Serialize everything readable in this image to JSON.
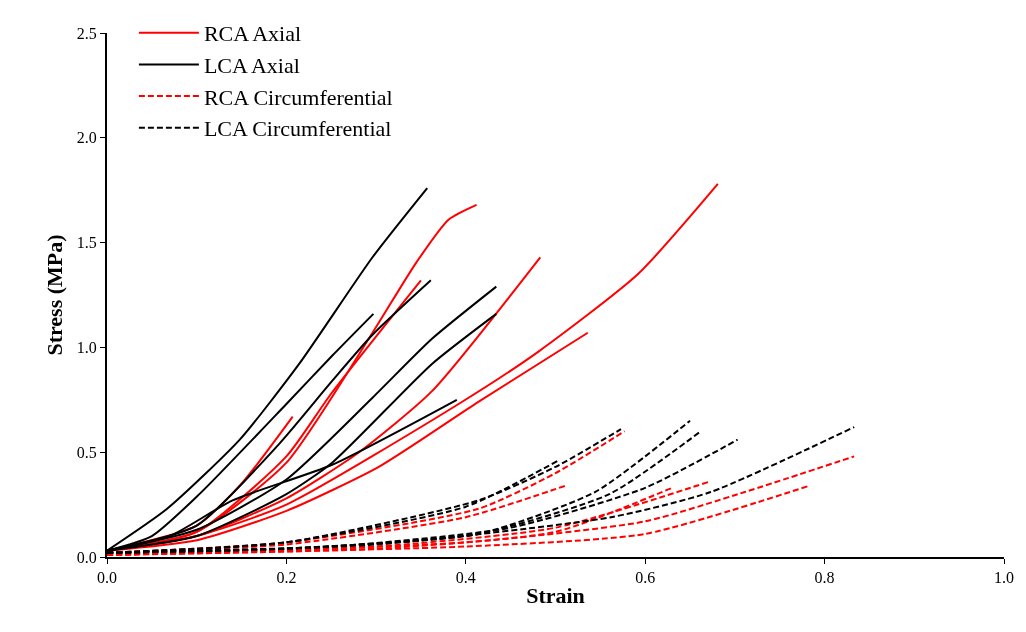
{
  "chart_data": {
    "type": "line",
    "xlabel": "Strain",
    "ylabel": "Stress (MPa)",
    "legend": "top left",
    "xlim": [
      0,
      1
    ],
    "ylim": [
      0,
      2.5
    ],
    "xticks": [
      {
        "value": 0,
        "label": "0.0"
      },
      {
        "value": 0.2,
        "label": "0.2"
      },
      {
        "value": 0.4,
        "label": "0.4"
      },
      {
        "value": 0.6,
        "label": "0.6"
      },
      {
        "value": 0.8,
        "label": "0.8"
      },
      {
        "value": 1,
        "label": "1.0"
      }
    ],
    "yticks": [
      {
        "value": 0,
        "label": "0.0"
      },
      {
        "value": 0.5,
        "label": "0.5"
      },
      {
        "value": 1,
        "label": "1.0"
      },
      {
        "value": 1.5,
        "label": "1.5"
      },
      {
        "value": 2,
        "label": "2.0"
      },
      {
        "value": 2.5,
        "label": "2.5"
      }
    ],
    "series": [
      {
        "name": "RCA Axial",
        "color": "#ff0000",
        "line_style": "solid",
        "x": [
          0,
          0.1,
          0.2,
          0.296,
          0.344,
          0.381,
          0.412
        ],
        "values": [
          0.03,
          0.12,
          0.45,
          1.07,
          1.4,
          1.61,
          1.68
        ]
      },
      {
        "color": "#ff0000",
        "line_style": "solid",
        "x": [
          0,
          0.1,
          0.2,
          0.25,
          0.35
        ],
        "values": [
          0.03,
          0.12,
          0.48,
          0.78,
          1.32
        ]
      },
      {
        "color": "#ff0000",
        "line_style": "solid",
        "x": [
          0,
          0.1,
          0.15,
          0.207
        ],
        "values": [
          0.03,
          0.15,
          0.35,
          0.67
        ]
      },
      {
        "color": "#ff0000",
        "line_style": "solid",
        "x": [
          0,
          0.1,
          0.2,
          0.281,
          0.362,
          0.483
        ],
        "values": [
          0.03,
          0.1,
          0.28,
          0.5,
          0.79,
          1.43
        ]
      },
      {
        "color": "#ff0000",
        "line_style": "solid",
        "x": [
          0,
          0.1,
          0.2,
          0.392,
          0.481,
          0.592,
          0.681
        ],
        "values": [
          0.03,
          0.1,
          0.25,
          0.73,
          0.98,
          1.35,
          1.78
        ]
      },
      {
        "color": "#ff0000",
        "line_style": "solid",
        "x": [
          0,
          0.1,
          0.2,
          0.303,
          0.414,
          0.536
        ],
        "values": [
          0.03,
          0.08,
          0.22,
          0.43,
          0.74,
          1.07
        ]
      },
      {
        "name": "LCA Axial",
        "color": "#000000",
        "line_style": "solid",
        "x": [
          0,
          0.067,
          0.148,
          0.214,
          0.296,
          0.357
        ],
        "values": [
          0.03,
          0.23,
          0.56,
          0.92,
          1.43,
          1.76
        ]
      },
      {
        "color": "#000000",
        "line_style": "solid",
        "x": [
          0,
          0.05,
          0.103,
          0.2,
          0.251,
          0.297
        ],
        "values": [
          0.03,
          0.1,
          0.3,
          0.73,
          0.96,
          1.16
        ]
      },
      {
        "color": "#000000",
        "line_style": "solid",
        "x": [
          0,
          0.1,
          0.192,
          0.251,
          0.296,
          0.361
        ],
        "values": [
          0.03,
          0.15,
          0.54,
          0.84,
          1.06,
          1.32
        ]
      },
      {
        "color": "#000000",
        "line_style": "solid",
        "x": [
          0,
          0.1,
          0.2,
          0.296,
          0.362,
          0.434
        ],
        "values": [
          0.03,
          0.13,
          0.37,
          0.76,
          1.04,
          1.29
        ]
      },
      {
        "color": "#000000",
        "line_style": "solid",
        "x": [
          0,
          0.1,
          0.2,
          0.251,
          0.362,
          0.434
        ],
        "values": [
          0.03,
          0.1,
          0.3,
          0.45,
          0.92,
          1.16
        ]
      },
      {
        "color": "#000000",
        "line_style": "solid",
        "x": [
          0,
          0.07,
          0.14,
          0.251,
          0.39
        ],
        "values": [
          0.03,
          0.1,
          0.27,
          0.44,
          0.75
        ]
      },
      {
        "name": "RCA Circumferential",
        "color": "#ff0000",
        "line_style": "dashed",
        "x": [
          0,
          0.2,
          0.414,
          0.5,
          0.577
        ],
        "values": [
          0.02,
          0.07,
          0.23,
          0.4,
          0.6
        ]
      },
      {
        "color": "#ff0000",
        "line_style": "dashed",
        "x": [
          0,
          0.2,
          0.4,
          0.511
        ],
        "values": [
          0.02,
          0.06,
          0.19,
          0.34
        ]
      },
      {
        "color": "#ff0000",
        "line_style": "dashed",
        "x": [
          0,
          0.3,
          0.5,
          0.672
        ],
        "values": [
          0.01,
          0.05,
          0.14,
          0.36
        ]
      },
      {
        "color": "#ff0000",
        "line_style": "dashed",
        "x": [
          0,
          0.4,
          0.6,
          0.711,
          0.833
        ],
        "values": [
          0.01,
          0.07,
          0.17,
          0.31,
          0.48
        ]
      },
      {
        "color": "#ff0000",
        "line_style": "dashed",
        "x": [
          0,
          0.4,
          0.6,
          0.783
        ],
        "values": [
          0.01,
          0.05,
          0.11,
          0.34
        ]
      },
      {
        "color": "#ff0000",
        "line_style": "dashed",
        "x": [
          0,
          0.3,
          0.5,
          0.63
        ],
        "values": [
          0.01,
          0.04,
          0.12,
          0.33
        ]
      },
      {
        "name": "LCA Circumferential",
        "color": "#000000",
        "line_style": "dashed",
        "x": [
          0,
          0.2,
          0.414,
          0.5,
          0.573
        ],
        "values": [
          0.02,
          0.07,
          0.27,
          0.43,
          0.61
        ]
      },
      {
        "color": "#000000",
        "line_style": "dashed",
        "x": [
          0,
          0.2,
          0.4,
          0.503
        ],
        "values": [
          0.02,
          0.07,
          0.24,
          0.46
        ]
      },
      {
        "color": "#000000",
        "line_style": "dashed",
        "x": [
          0,
          0.2,
          0.414,
          0.544,
          0.65
        ],
        "values": [
          0.02,
          0.04,
          0.11,
          0.31,
          0.65
        ]
      },
      {
        "color": "#000000",
        "line_style": "dashed",
        "x": [
          0,
          0.2,
          0.414,
          0.56,
          0.662
        ],
        "values": [
          0.02,
          0.04,
          0.11,
          0.3,
          0.6
        ]
      },
      {
        "color": "#000000",
        "line_style": "dashed",
        "x": [
          0,
          0.25,
          0.45,
          0.6,
          0.703
        ],
        "values": [
          0.02,
          0.05,
          0.14,
          0.33,
          0.56
        ]
      },
      {
        "color": "#000000",
        "line_style": "dashed",
        "x": [
          0,
          0.3,
          0.562,
          0.673,
          0.833
        ],
        "values": [
          0.02,
          0.06,
          0.19,
          0.31,
          0.62
        ]
      }
    ]
  }
}
